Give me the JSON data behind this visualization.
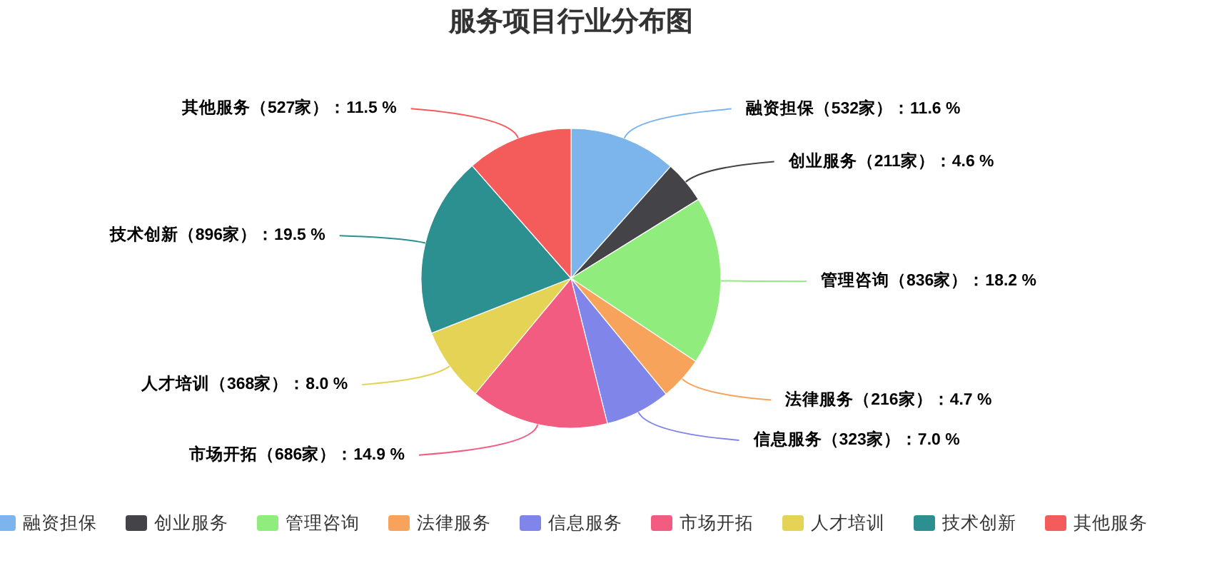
{
  "chart_data": {
    "type": "pie",
    "title": "服务项目行业分布图",
    "categories": [
      "融资担保",
      "创业服务",
      "管理咨询",
      "法律服务",
      "信息服务",
      "市场开拓",
      "人才培训",
      "技术创新",
      "其他服务"
    ],
    "values": [
      532,
      211,
      836,
      216,
      323,
      686,
      368,
      896,
      527
    ],
    "colors": [
      "#7cb5ec",
      "#434348",
      "#90ed7d",
      "#f7a35c",
      "#8085e9",
      "#f15c80",
      "#e4d354",
      "#2b908f",
      "#f45b5b"
    ],
    "value_labels": [
      "融资担保（532家）：11.6 %",
      "创业服务（211家）：4.6 %",
      "管理咨询（836家）：18.2 %",
      "法律服务（216家）：4.7 %",
      "信息服务（323家）：7.0 %",
      "市场开拓（686家）：14.9 %",
      "人才培训（368家）：8.0 %",
      "技术创新（896家）：19.5 %",
      "其他服务（527家）：11.5 %"
    ],
    "legend": "bottom"
  }
}
